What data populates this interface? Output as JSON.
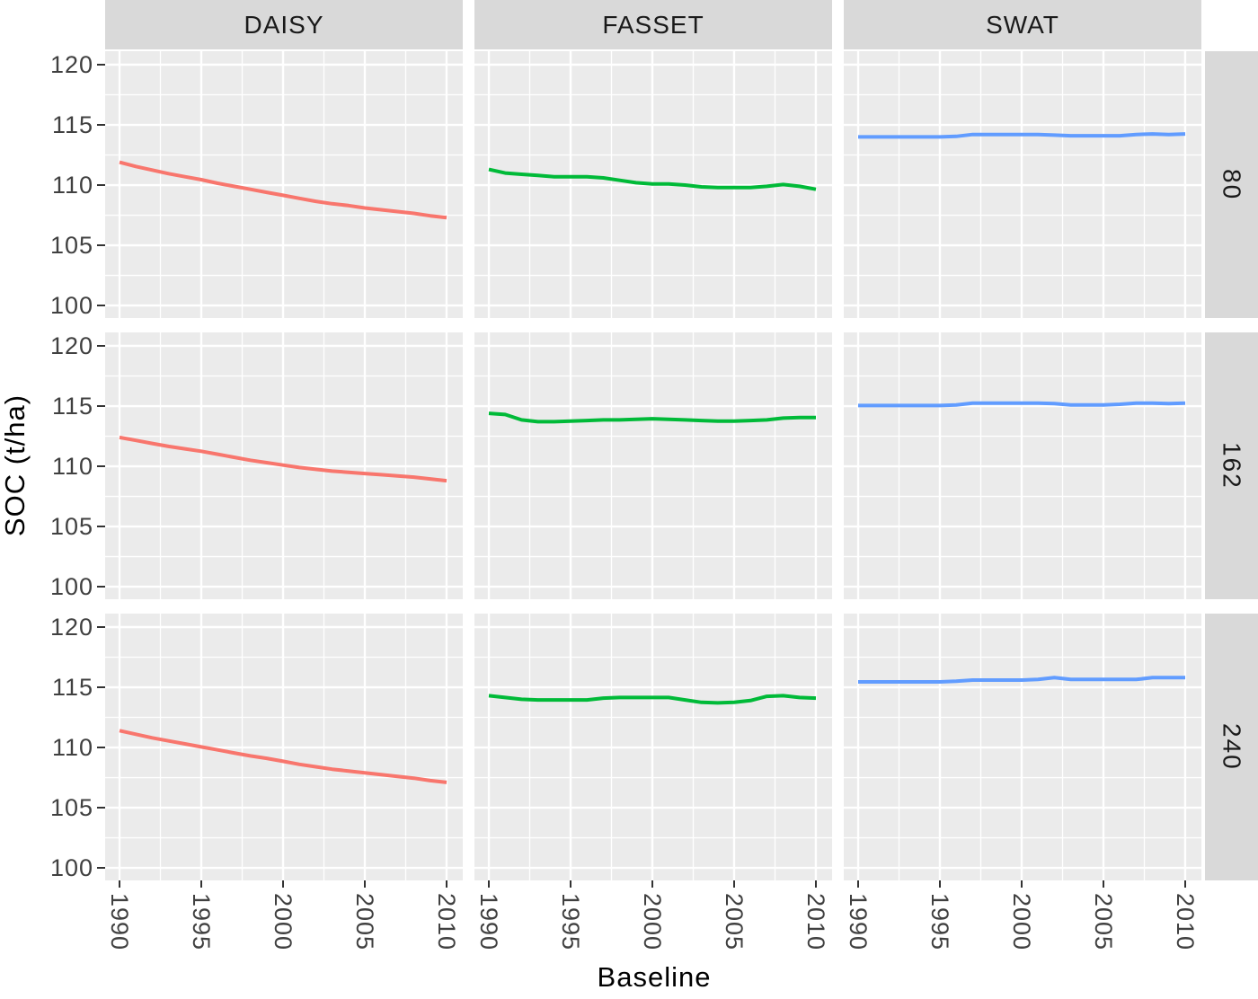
{
  "figure": {
    "background": "#ffffff",
    "panel_background": "#ebebeb",
    "strip_background": "#d9d9d9",
    "gridline_color": "#ffffff",
    "tick_color": "#333333",
    "tick_label_color": "#404040"
  },
  "chart_data": {
    "type": "line",
    "title": "",
    "xlabel": "Baseline",
    "ylabel": "SOC (t/ha)",
    "facet_columns": [
      "DAISY",
      "FASSET",
      "SWAT"
    ],
    "facet_rows": [
      "80",
      "162",
      "240"
    ],
    "legend": "none",
    "grid": {
      "major": true,
      "minor": true
    },
    "x_ticks": [
      1990,
      1995,
      2000,
      2005,
      2010
    ],
    "y_ticks": [
      120,
      115,
      110,
      105,
      100
    ],
    "x_domain": [
      1989.12,
      2010.99
    ],
    "y_domain": [
      98.96,
      121.12
    ],
    "x": [
      1990,
      1991,
      1992,
      1993,
      1994,
      1995,
      1996,
      1997,
      1998,
      1999,
      2000,
      2001,
      2002,
      2003,
      2004,
      2005,
      2006,
      2007,
      2008,
      2009,
      2010
    ],
    "series": [
      {
        "facet_row": "80",
        "facet_col": "DAISY",
        "name": "DAISY-80",
        "color": "#F8766D",
        "values": [
          111.9,
          111.55,
          111.25,
          110.95,
          110.7,
          110.45,
          110.15,
          109.9,
          109.65,
          109.4,
          109.15,
          108.9,
          108.65,
          108.45,
          108.3,
          108.1,
          107.95,
          107.8,
          107.65,
          107.45,
          107.3
        ]
      },
      {
        "facet_row": "80",
        "facet_col": "FASSET",
        "name": "FASSET-80",
        "color": "#00BA38",
        "values": [
          111.3,
          111.0,
          110.9,
          110.8,
          110.7,
          110.7,
          110.7,
          110.6,
          110.4,
          110.2,
          110.1,
          110.1,
          110.0,
          109.85,
          109.8,
          109.8,
          109.8,
          109.9,
          110.05,
          109.9,
          109.65
        ]
      },
      {
        "facet_row": "80",
        "facet_col": "SWAT",
        "name": "SWAT-80",
        "color": "#619CFF",
        "values": [
          114.0,
          114.0,
          114.0,
          114.0,
          114.0,
          114.0,
          114.05,
          114.2,
          114.2,
          114.2,
          114.2,
          114.2,
          114.15,
          114.1,
          114.1,
          114.1,
          114.1,
          114.2,
          114.25,
          114.2,
          114.25
        ]
      },
      {
        "facet_row": "162",
        "facet_col": "DAISY",
        "name": "DAISY-162",
        "color": "#F8766D",
        "values": [
          112.4,
          112.15,
          111.9,
          111.65,
          111.45,
          111.25,
          111.0,
          110.75,
          110.5,
          110.3,
          110.1,
          109.9,
          109.75,
          109.6,
          109.5,
          109.4,
          109.3,
          109.2,
          109.1,
          108.95,
          108.8
        ]
      },
      {
        "facet_row": "162",
        "facet_col": "FASSET",
        "name": "FASSET-162",
        "color": "#00BA38",
        "values": [
          114.4,
          114.3,
          113.85,
          113.7,
          113.7,
          113.75,
          113.8,
          113.85,
          113.85,
          113.9,
          113.95,
          113.9,
          113.85,
          113.8,
          113.75,
          113.75,
          113.8,
          113.85,
          114.0,
          114.05,
          114.05
        ]
      },
      {
        "facet_row": "162",
        "facet_col": "SWAT",
        "name": "SWAT-162",
        "color": "#619CFF",
        "values": [
          115.05,
          115.05,
          115.05,
          115.05,
          115.05,
          115.05,
          115.1,
          115.25,
          115.25,
          115.25,
          115.25,
          115.25,
          115.2,
          115.1,
          115.1,
          115.1,
          115.15,
          115.25,
          115.25,
          115.2,
          115.25
        ]
      },
      {
        "facet_row": "240",
        "facet_col": "DAISY",
        "name": "DAISY-240",
        "color": "#F8766D",
        "values": [
          111.4,
          111.1,
          110.8,
          110.55,
          110.3,
          110.05,
          109.8,
          109.55,
          109.3,
          109.1,
          108.85,
          108.6,
          108.4,
          108.2,
          108.05,
          107.9,
          107.75,
          107.6,
          107.45,
          107.25,
          107.1
        ]
      },
      {
        "facet_row": "240",
        "facet_col": "FASSET",
        "name": "FASSET-240",
        "color": "#00BA38",
        "values": [
          114.3,
          114.15,
          114.0,
          113.95,
          113.95,
          113.95,
          113.95,
          114.1,
          114.15,
          114.15,
          114.15,
          114.15,
          113.95,
          113.75,
          113.7,
          113.75,
          113.9,
          114.25,
          114.3,
          114.15,
          114.1
        ]
      },
      {
        "facet_row": "240",
        "facet_col": "SWAT",
        "name": "SWAT-240",
        "color": "#619CFF",
        "values": [
          115.45,
          115.45,
          115.45,
          115.45,
          115.45,
          115.45,
          115.5,
          115.6,
          115.6,
          115.6,
          115.6,
          115.65,
          115.8,
          115.65,
          115.65,
          115.65,
          115.65,
          115.65,
          115.8,
          115.8,
          115.8
        ]
      }
    ]
  }
}
